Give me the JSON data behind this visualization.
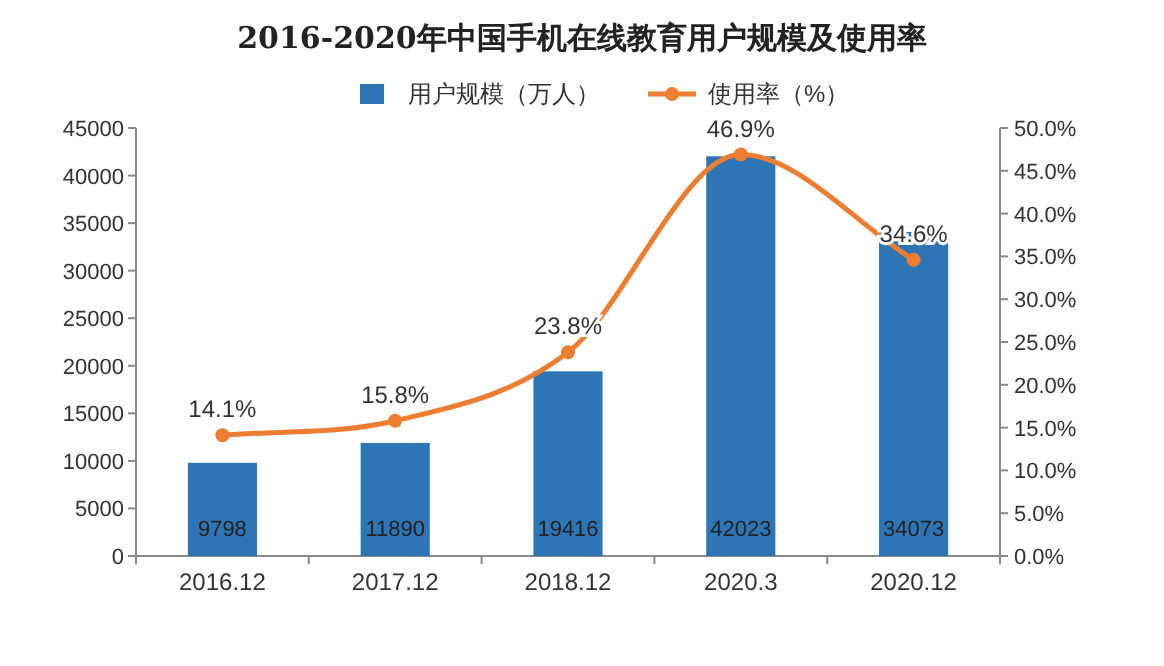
{
  "chart_data": {
    "type": "bar",
    "title": "2016-2020年中国手机在线教育用户规模及使用率",
    "categories": [
      "2016.12",
      "2017.12",
      "2018.12",
      "2020.3",
      "2020.12"
    ],
    "series": [
      {
        "name": "用户规模（万人）",
        "color": "#2e75b6",
        "values": [
          9798,
          11890,
          19416,
          42023,
          34073
        ],
        "value_labels": [
          "9798",
          "11890",
          "19416",
          "42023",
          "34073"
        ]
      },
      {
        "name": "使用率（%）",
        "type": "line",
        "axis": "y2",
        "color": "#ed7d31",
        "marker": "circle",
        "values": [
          14.1,
          15.8,
          23.8,
          46.9,
          34.6
        ],
        "value_labels": [
          "14.1%",
          "15.8%",
          "23.8%",
          "46.9%",
          "34.6%"
        ]
      }
    ],
    "ylim": [
      0,
      45000
    ],
    "yticks": [
      0,
      5000,
      10000,
      15000,
      20000,
      25000,
      30000,
      35000,
      40000,
      45000
    ],
    "y2lim": [
      0,
      50
    ],
    "y2ticks": [
      {
        "value": 0,
        "label": "0.0%"
      },
      {
        "value": 5,
        "label": "5.0%"
      },
      {
        "value": 10,
        "label": "10.0%"
      },
      {
        "value": 15,
        "label": "15.0%"
      },
      {
        "value": 20,
        "label": "20.0%"
      },
      {
        "value": 25,
        "label": "25.0%"
      },
      {
        "value": 30,
        "label": "30.0%"
      },
      {
        "value": 35,
        "label": "35.0%"
      },
      {
        "value": 40,
        "label": "40.0%"
      },
      {
        "value": 45,
        "label": "45.0%"
      },
      {
        "value": 50,
        "label": "50.0%"
      }
    ],
    "legend": "top"
  }
}
